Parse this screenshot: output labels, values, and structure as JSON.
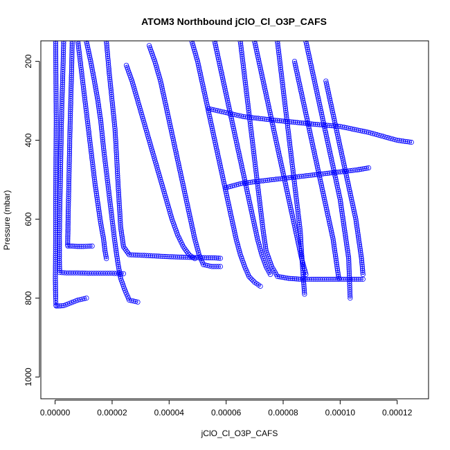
{
  "chart_data": {
    "type": "scatter",
    "title": "ATOM3 Northbound jClO_Cl_O3P_CAFS",
    "xlabel": "jClO_Cl_O3P_CAFS",
    "ylabel": "Pressure (mbar)",
    "xlim": [
      -5e-06,
      0.000131
    ],
    "ylim": [
      1055,
      148
    ],
    "y_reversed": true,
    "x_ticks": [
      0,
      2e-05,
      4e-05,
      6e-05,
      8e-05,
      0.0001,
      0.00012
    ],
    "x_tick_labels": [
      "0.00000",
      "0.00002",
      "0.00004",
      "0.00006",
      "0.00008",
      "0.00010",
      "0.00012"
    ],
    "y_ticks": [
      200,
      400,
      600,
      800,
      1000
    ],
    "y_tick_labels": [
      "200",
      "400",
      "600",
      "800",
      "1000"
    ],
    "marker": "open-circle",
    "draw_lines": true,
    "grid": false,
    "legend": "none",
    "colors": {
      "series": "#0000ff",
      "axis": "#000000",
      "background": "#ffffff"
    },
    "series": [
      {
        "x": [
          2e-07,
          3e-07,
          4e-07,
          3e-07,
          2e-07,
          2e-07,
          1e-07,
          2e-07,
          3e-07,
          4e-07,
          1e-06,
          3e-06,
          8e-06,
          1.1e-05
        ],
        "y": [
          150,
          250,
          350,
          450,
          550,
          650,
          750,
          800,
          818,
          820,
          820,
          819,
          805,
          800
        ]
      },
      {
        "x": [
          3e-06,
          2.8e-06,
          2.5e-06,
          2.2e-06,
          2e-06,
          1.8e-06,
          1.6e-06,
          1.5e-06,
          1.5e-06,
          1.6e-06,
          4e-06,
          8e-06,
          1.2e-05,
          1.6e-05,
          2e-05,
          2.4e-05
        ],
        "y": [
          150,
          210,
          280,
          360,
          440,
          520,
          590,
          650,
          700,
          735,
          736,
          736,
          737,
          737,
          737,
          738
        ]
      },
      {
        "x": [
          6e-06,
          5.8e-06,
          5.5e-06,
          5.2e-06,
          5e-06,
          4.8e-06,
          4.6e-06,
          4.5e-06,
          4.4e-06,
          4.5e-06,
          6e-06,
          8e-06,
          1e-05,
          1.3e-05
        ],
        "y": [
          150,
          220,
          300,
          380,
          450,
          520,
          580,
          630,
          665,
          668,
          668,
          669,
          669,
          668
        ]
      },
      {
        "x": [
          8e-06,
          9e-06,
          1e-05,
          1.1e-05,
          1.2e-05,
          1.3e-05,
          1.4e-05,
          1.5e-05,
          1.6e-05,
          1.7e-05,
          1.75e-05,
          1.8e-05
        ],
        "y": [
          150,
          210,
          270,
          330,
          390,
          450,
          510,
          560,
          610,
          650,
          680,
          700
        ]
      },
      {
        "x": [
          1.1e-05,
          1.25e-05,
          1.38e-05,
          1.5e-05,
          1.6e-05,
          1.7e-05,
          1.8e-05,
          1.9e-05,
          2e-05,
          2.1e-05,
          2.2e-05,
          2.3e-05,
          2.45e-05,
          2.6e-05,
          2.9e-05
        ],
        "y": [
          150,
          200,
          250,
          300,
          350,
          420,
          480,
          540,
          600,
          660,
          710,
          750,
          780,
          805,
          810
        ]
      },
      {
        "x": [
          1.8e-05,
          1.9e-05,
          2e-05,
          2.1e-05,
          2.15e-05,
          2.2e-05,
          2.25e-05,
          2.3e-05,
          2.4e-05,
          2.6e-05,
          3.2e-05,
          4e-05,
          4.8e-05,
          5.6e-05,
          5.8e-05
        ],
        "y": [
          150,
          230,
          300,
          370,
          430,
          500,
          560,
          620,
          670,
          690,
          692,
          695,
          697,
          698,
          699
        ]
      },
      {
        "x": [
          2.5e-05,
          2.7e-05,
          2.9e-05,
          3.1e-05,
          3.3e-05,
          3.5e-05,
          3.7e-05,
          3.9e-05,
          4.1e-05,
          4.3e-05,
          4.5e-05,
          4.7e-05,
          4.9e-05
        ],
        "y": [
          210,
          250,
          300,
          350,
          400,
          450,
          500,
          550,
          600,
          640,
          670,
          690,
          700
        ]
      },
      {
        "x": [
          3.3e-05,
          3.5e-05,
          3.7e-05,
          3.85e-05,
          4e-05,
          4.15e-05,
          4.3e-05,
          4.45e-05,
          4.6e-05,
          4.75e-05,
          4.9e-05,
          5.05e-05,
          5.2e-05,
          5.5e-05,
          5.8e-05
        ],
        "y": [
          160,
          200,
          250,
          300,
          350,
          400,
          450,
          500,
          550,
          600,
          650,
          690,
          715,
          720,
          720
        ]
      },
      {
        "x": [
          4.8e-05,
          5e-05,
          5.15e-05,
          5.3e-05,
          5.45e-05,
          5.6e-05,
          5.75e-05,
          5.9e-05,
          6.05e-05,
          6.2e-05,
          6.35e-05,
          6.5e-05,
          6.65e-05,
          6.8e-05,
          7e-05,
          7.2e-05
        ],
        "y": [
          150,
          200,
          250,
          300,
          350,
          400,
          450,
          500,
          550,
          600,
          650,
          690,
          720,
          745,
          760,
          770
        ]
      },
      {
        "x": [
          5.6e-05,
          5.75e-05,
          5.9e-05,
          6.05e-05,
          6.2e-05,
          6.35e-05,
          6.5e-05,
          6.65e-05,
          6.8e-05,
          6.95e-05,
          7.1e-05,
          7.25e-05,
          7.4e-05,
          7.55e-05
        ],
        "y": [
          150,
          200,
          250,
          300,
          350,
          400,
          450,
          500,
          550,
          600,
          650,
          690,
          720,
          740
        ]
      },
      {
        "x": [
          6.5e-05,
          6.6e-05,
          6.7e-05,
          6.8e-05,
          6.9e-05,
          7e-05,
          7.1e-05,
          7.2e-05,
          7.3e-05,
          7.4e-05,
          7.6e-05,
          7.8e-05,
          8.2e-05,
          8.6e-05,
          9e-05,
          9.6e-05,
          0.000102,
          0.000108
        ],
        "y": [
          150,
          210,
          270,
          330,
          390,
          450,
          510,
          570,
          630,
          680,
          720,
          745,
          750,
          752,
          752,
          752,
          752,
          752
        ]
      },
      {
        "x": [
          7e-05,
          7.15e-05,
          7.3e-05,
          7.45e-05,
          7.6e-05,
          7.75e-05,
          7.9e-05,
          8.05e-05,
          8.2e-05,
          8.35e-05,
          8.5e-05,
          8.65e-05,
          8.8e-05
        ],
        "y": [
          150,
          200,
          250,
          300,
          350,
          400,
          450,
          500,
          550,
          600,
          650,
          700,
          740
        ]
      },
      {
        "x": [
          7.8e-05,
          7.9e-05,
          8e-05,
          8.1e-05,
          8.2e-05,
          8.3e-05,
          8.4e-05,
          8.5e-05,
          8.6e-05,
          8.65e-05,
          8.7e-05,
          8.75e-05
        ],
        "y": [
          150,
          210,
          270,
          330,
          390,
          450,
          510,
          570,
          630,
          690,
          740,
          790
        ]
      },
      {
        "x": [
          8.4e-05,
          8.55e-05,
          8.7e-05,
          8.85e-05,
          9e-05,
          9.15e-05,
          9.3e-05,
          9.45e-05,
          9.6e-05,
          9.75e-05,
          9.85e-05,
          9.95e-05
        ],
        "y": [
          200,
          250,
          300,
          350,
          400,
          450,
          500,
          550,
          600,
          650,
          700,
          750
        ]
      },
      {
        "x": [
          8.8e-05,
          8.95e-05,
          9.1e-05,
          9.25e-05,
          9.4e-05,
          9.55e-05,
          9.7e-05,
          9.85e-05,
          0.0001,
          0.000101,
          0.000102,
          0.000103,
          0.0001035
        ],
        "y": [
          150,
          200,
          250,
          300,
          350,
          400,
          450,
          500,
          550,
          600,
          650,
          700,
          800
        ]
      },
      {
        "x": [
          9.5e-05,
          9.65e-05,
          9.8e-05,
          9.95e-05,
          0.000101,
          0.0001025,
          0.000104,
          0.0001055,
          0.0001065,
          0.0001075,
          0.000108
        ],
        "y": [
          250,
          300,
          350,
          400,
          450,
          500,
          550,
          600,
          650,
          700,
          740
        ]
      },
      {
        "x": [
          5.4e-05,
          6e-05,
          6.6e-05,
          7.2e-05,
          7.8e-05,
          8.5e-05,
          9.2e-05,
          0.0001,
          0.00011,
          0.00012,
          0.000125
        ],
        "y": [
          320,
          330,
          340,
          345,
          350,
          355,
          360,
          365,
          380,
          400,
          405
        ]
      },
      {
        "x": [
          6e-05,
          6.5e-05,
          7e-05,
          7.6e-05,
          8.2e-05,
          8.8e-05,
          9.4e-05,
          0.0001,
          0.000106,
          0.00011
        ],
        "y": [
          520,
          510,
          505,
          500,
          495,
          490,
          485,
          480,
          475,
          470
        ]
      }
    ]
  }
}
